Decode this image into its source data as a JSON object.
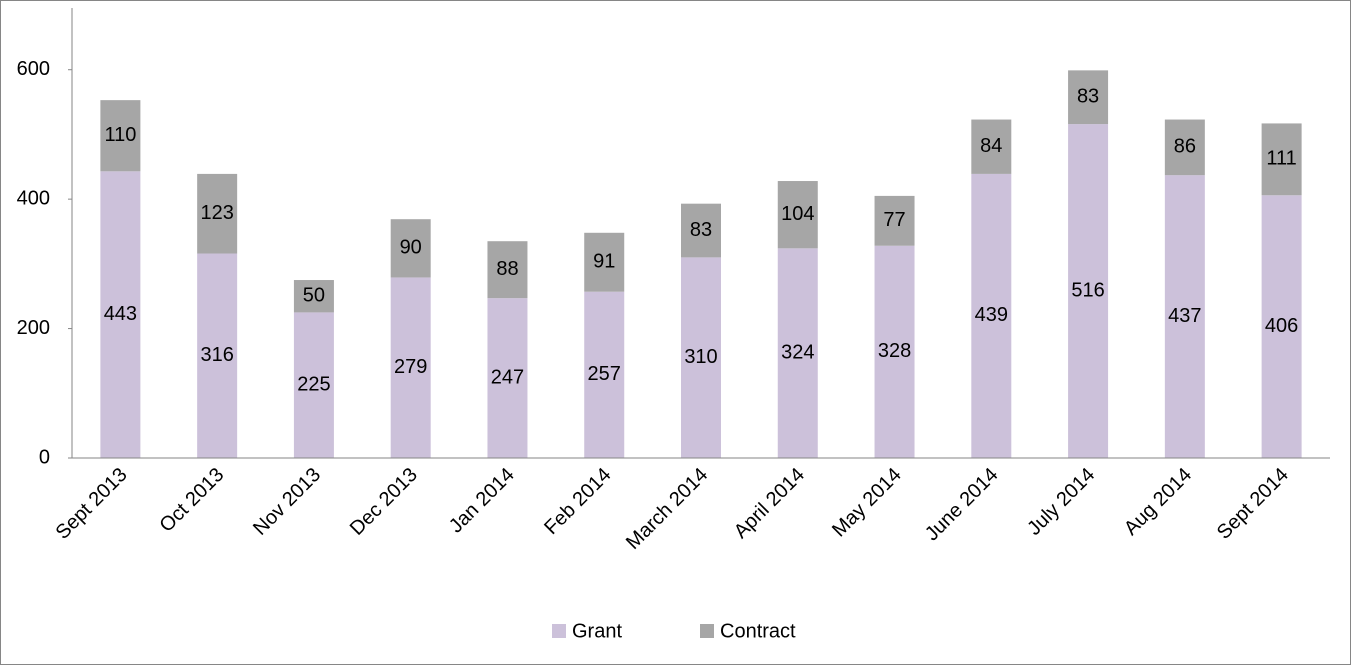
{
  "chart_data": {
    "type": "stacked_bar",
    "categories": [
      "Sept 2013",
      "Oct 2013",
      "Nov 2013",
      "Dec 2013",
      "Jan 2014",
      "Feb 2014",
      "March 2014",
      "April 2014",
      "May 2014",
      "June 2014",
      "July 2014",
      "Aug 2014",
      "Sept 2014"
    ],
    "series": [
      {
        "name": "Grant",
        "color": "#ccc1da",
        "values": [
          443,
          316,
          225,
          279,
          247,
          257,
          310,
          324,
          328,
          439,
          516,
          437,
          406
        ]
      },
      {
        "name": "Contract",
        "color": "#a6a6a6",
        "values": [
          110,
          123,
          50,
          90,
          88,
          91,
          83,
          104,
          77,
          84,
          83,
          86,
          111
        ]
      }
    ],
    "ylim": [
      0,
      700
    ],
    "yticks": [
      0,
      200,
      400,
      600
    ],
    "grid": false,
    "legend": "bottom"
  }
}
